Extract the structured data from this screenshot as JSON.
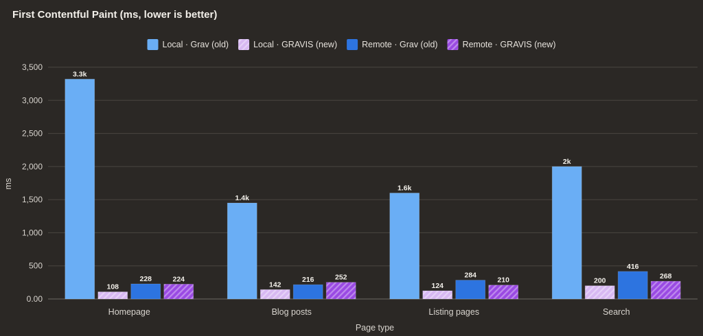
{
  "chart_data": {
    "type": "bar",
    "title": "First Contentful Paint (ms, lower is better)",
    "xlabel": "Page type",
    "ylabel": "ms",
    "ylim": [
      0,
      3500
    ],
    "yticks": [
      0,
      500,
      1000,
      1500,
      2000,
      2500,
      3000,
      3500
    ],
    "ytick_labels": [
      "0.00",
      "500",
      "1,000",
      "1,500",
      "2,000",
      "2,500",
      "3,000",
      "3,500"
    ],
    "grid": true,
    "legend_position": "top-center",
    "categories": [
      "Homepage",
      "Blog posts",
      "Listing pages",
      "Search"
    ],
    "series": [
      {
        "name": "Local · Grav (old)",
        "values": [
          3320,
          1450,
          1600,
          2000
        ],
        "labels": [
          "3.3k",
          "1.4k",
          "1.6k",
          "2k"
        ],
        "color": "#6aaef5",
        "hatched": false
      },
      {
        "name": "Local · GRAVIS (new)",
        "values": [
          108,
          142,
          124,
          200
        ],
        "labels": [
          "108",
          "142",
          "124",
          "200"
        ],
        "color": "#d7b8f2",
        "hatched": true
      },
      {
        "name": "Remote · Grav (old)",
        "values": [
          228,
          216,
          284,
          416
        ],
        "labels": [
          "228",
          "216",
          "284",
          "416"
        ],
        "color": "#2d74e0",
        "hatched": false
      },
      {
        "name": "Remote · GRAVIS (new)",
        "values": [
          224,
          252,
          210,
          268
        ],
        "labels": [
          "224",
          "252",
          "210",
          "268"
        ],
        "color": "#9a4ae3",
        "hatched": true
      }
    ]
  }
}
